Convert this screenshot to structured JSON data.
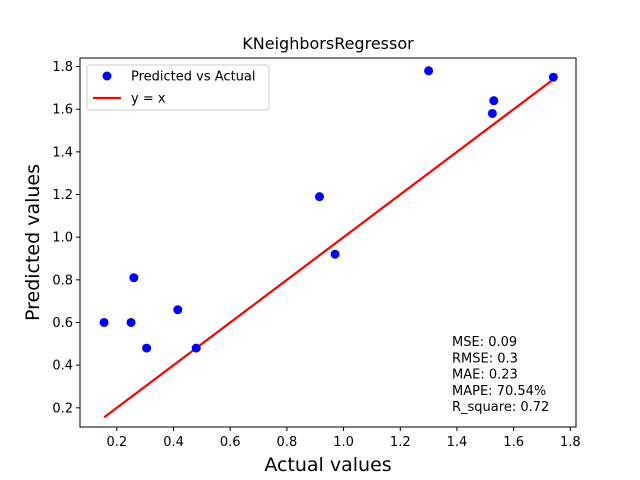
{
  "chart_data": {
    "type": "scatter",
    "title": "KNeighborsRegressor",
    "xlabel": "Actual values",
    "ylabel": "Predicted values",
    "xlim": [
      0.07,
      1.82
    ],
    "ylim": [
      0.11,
      1.84
    ],
    "xticks": [
      0.2,
      0.4,
      0.6,
      0.8,
      1.0,
      1.2,
      1.4,
      1.6,
      1.8
    ],
    "xtick_labels": [
      "0.2",
      "0.4",
      "0.6",
      "0.8",
      "1.0",
      "1.2",
      "1.4",
      "1.6",
      "1.8"
    ],
    "yticks": [
      0.2,
      0.4,
      0.6,
      0.8,
      1.0,
      1.2,
      1.4,
      1.6,
      1.8
    ],
    "ytick_labels": [
      "0.2",
      "0.4",
      "0.6",
      "0.8",
      "1.0",
      "1.2",
      "1.4",
      "1.6",
      "1.8"
    ],
    "grid": false,
    "legend_position": "top-left",
    "series": [
      {
        "name": "Predicted vs Actual",
        "kind": "scatter",
        "color": "#0000ff",
        "x": [
          0.155,
          0.25,
          0.26,
          0.305,
          0.415,
          0.48,
          0.915,
          0.97,
          1.3,
          1.525,
          1.53,
          1.74
        ],
        "y": [
          0.6,
          0.6,
          0.81,
          0.48,
          0.66,
          0.48,
          1.19,
          0.92,
          1.78,
          1.58,
          1.64,
          1.75
        ]
      },
      {
        "name": "y = x",
        "kind": "line",
        "color": "#ff0000",
        "x": [
          0.155,
          1.74
        ],
        "y": [
          0.155,
          1.74
        ]
      }
    ],
    "annotations": [
      "MSE: 0.09",
      "RMSE: 0.3",
      "MAE: 0.23",
      "MAPE: 70.54%",
      "R_square: 0.72"
    ]
  }
}
